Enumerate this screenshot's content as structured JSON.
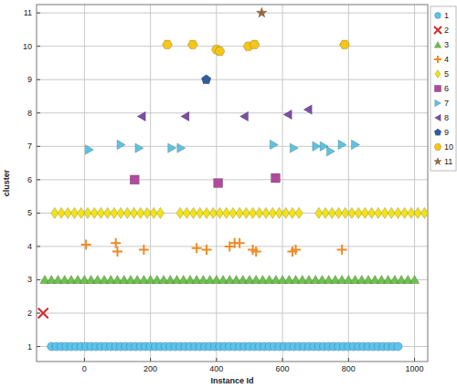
{
  "chart_data": {
    "type": "scatter",
    "x_label": "Instance Id",
    "y_label": "cluster",
    "xlim": [
      -145,
      1040
    ],
    "ylim": [
      0.55,
      11.25
    ],
    "xticks": [
      0,
      200,
      400,
      600,
      800,
      1000
    ],
    "yticks": [
      1,
      2,
      3,
      4,
      5,
      6,
      7,
      8,
      9,
      10,
      11
    ],
    "grid": true,
    "legend": "right",
    "series": [
      {
        "name": "1",
        "color": "#5cc3ee",
        "marker": "circle",
        "x": [
          -100,
          -85,
          -70,
          -55,
          -40,
          -25,
          -10,
          5,
          20,
          35,
          50,
          65,
          80,
          95,
          110,
          125,
          140,
          155,
          170,
          185,
          200,
          215,
          230,
          245,
          260,
          275,
          290,
          305,
          320,
          335,
          350,
          365,
          380,
          395,
          410,
          425,
          440,
          455,
          470,
          485,
          500,
          515,
          530,
          545,
          560,
          575,
          590,
          605,
          620,
          635,
          650,
          665,
          680,
          695,
          710,
          725,
          740,
          755,
          770,
          785,
          800,
          815,
          830,
          845,
          860,
          875,
          890,
          905,
          920,
          935,
          950
        ],
        "values": [
          1,
          1,
          1,
          1,
          1,
          1,
          1,
          1,
          1,
          1,
          1,
          1,
          1,
          1,
          1,
          1,
          1,
          1,
          1,
          1,
          1,
          1,
          1,
          1,
          1,
          1,
          1,
          1,
          1,
          1,
          1,
          1,
          1,
          1,
          1,
          1,
          1,
          1,
          1,
          1,
          1,
          1,
          1,
          1,
          1,
          1,
          1,
          1,
          1,
          1,
          1,
          1,
          1,
          1,
          1,
          1,
          1,
          1,
          1,
          1,
          1,
          1,
          1,
          1,
          1,
          1,
          1,
          1,
          1,
          1,
          1
        ]
      },
      {
        "name": "2",
        "color": "#d62728",
        "marker": "x",
        "x": [
          -125
        ],
        "values": [
          2
        ]
      },
      {
        "name": "3",
        "color": "#6cc24a",
        "marker": "triangle",
        "x": [
          -120,
          -100,
          -80,
          -60,
          -40,
          -20,
          0,
          20,
          40,
          60,
          80,
          100,
          120,
          140,
          160,
          180,
          200,
          220,
          240,
          260,
          280,
          300,
          320,
          340,
          360,
          380,
          400,
          420,
          440,
          460,
          480,
          500,
          520,
          540,
          560,
          580,
          600,
          620,
          640,
          660,
          680,
          700,
          720,
          740,
          760,
          780,
          800,
          820,
          840,
          860,
          880,
          900,
          920,
          940,
          960,
          980,
          1000
        ],
        "values": [
          3,
          3,
          3,
          3,
          3,
          3,
          3,
          3,
          3,
          3,
          3,
          3,
          3,
          3,
          3,
          3,
          3,
          3,
          3,
          3,
          3,
          3,
          3,
          3,
          3,
          3,
          3,
          3,
          3,
          3,
          3,
          3,
          3,
          3,
          3,
          3,
          3,
          3,
          3,
          3,
          3,
          3,
          3,
          3,
          3,
          3,
          3,
          3,
          3,
          3,
          3,
          3,
          3,
          3,
          3,
          3,
          3
        ]
      },
      {
        "name": "4",
        "color": "#f08a24",
        "marker": "plus",
        "x": [
          5,
          95,
          100,
          180,
          340,
          370,
          440,
          455,
          470,
          510,
          520,
          630,
          640,
          780
        ],
        "values": [
          4.05,
          4.1,
          3.85,
          3.9,
          3.95,
          3.9,
          4.0,
          4.1,
          4.1,
          3.9,
          3.85,
          3.85,
          3.9,
          3.9
        ]
      },
      {
        "name": "5",
        "color": "#f2e21a",
        "marker": "diamond",
        "x": [
          -90,
          -70,
          -50,
          -30,
          -10,
          10,
          30,
          50,
          70,
          90,
          110,
          130,
          150,
          170,
          190,
          210,
          230,
          290,
          310,
          330,
          350,
          370,
          390,
          410,
          430,
          450,
          470,
          490,
          510,
          530,
          550,
          570,
          590,
          610,
          630,
          650,
          710,
          730,
          750,
          770,
          790,
          810,
          830,
          850,
          870,
          890,
          910,
          930,
          950,
          970,
          990,
          1010,
          1030
        ],
        "values": [
          5,
          5,
          5,
          5,
          5,
          5,
          5,
          5,
          5,
          5,
          5,
          5,
          5,
          5,
          5,
          5,
          5,
          5,
          5,
          5,
          5,
          5,
          5,
          5,
          5,
          5,
          5,
          5,
          5,
          5,
          5,
          5,
          5,
          5,
          5,
          5,
          5,
          5,
          5,
          5,
          5,
          5,
          5,
          5,
          5,
          5,
          5,
          5,
          5,
          5,
          5,
          5,
          5
        ]
      },
      {
        "name": "6",
        "color": "#b04a9c",
        "marker": "square",
        "x": [
          152,
          405,
          579
        ],
        "values": [
          6,
          5.9,
          6.05
        ]
      },
      {
        "name": "7",
        "color": "#5cc3e0",
        "marker": "triangle-right",
        "x": [
          14,
          110,
          165,
          264,
          292,
          573,
          634,
          702,
          725,
          745,
          780,
          820
        ],
        "values": [
          6.9,
          7.05,
          6.95,
          6.95,
          6.95,
          7.05,
          6.95,
          7.0,
          7.0,
          6.85,
          7.05,
          7.05
        ]
      },
      {
        "name": "8",
        "color": "#7b4fa3",
        "marker": "triangle-left",
        "x": [
          174,
          306,
          485,
          617,
          678
        ],
        "values": [
          7.9,
          7.9,
          7.9,
          7.95,
          8.1
        ]
      },
      {
        "name": "9",
        "color": "#2f5e9e",
        "marker": "pentagon",
        "x": [
          369
        ],
        "values": [
          9
        ]
      },
      {
        "name": "10",
        "color": "#f5c518",
        "marker": "hexagon",
        "x": [
          251,
          328,
          400,
          410,
          496,
          515,
          788
        ],
        "values": [
          10.05,
          10.05,
          9.9,
          9.85,
          10.0,
          10.05,
          10.05
        ]
      },
      {
        "name": "11",
        "color": "#9c6b3a",
        "marker": "star",
        "x": [
          537
        ],
        "values": [
          11
        ]
      }
    ]
  }
}
